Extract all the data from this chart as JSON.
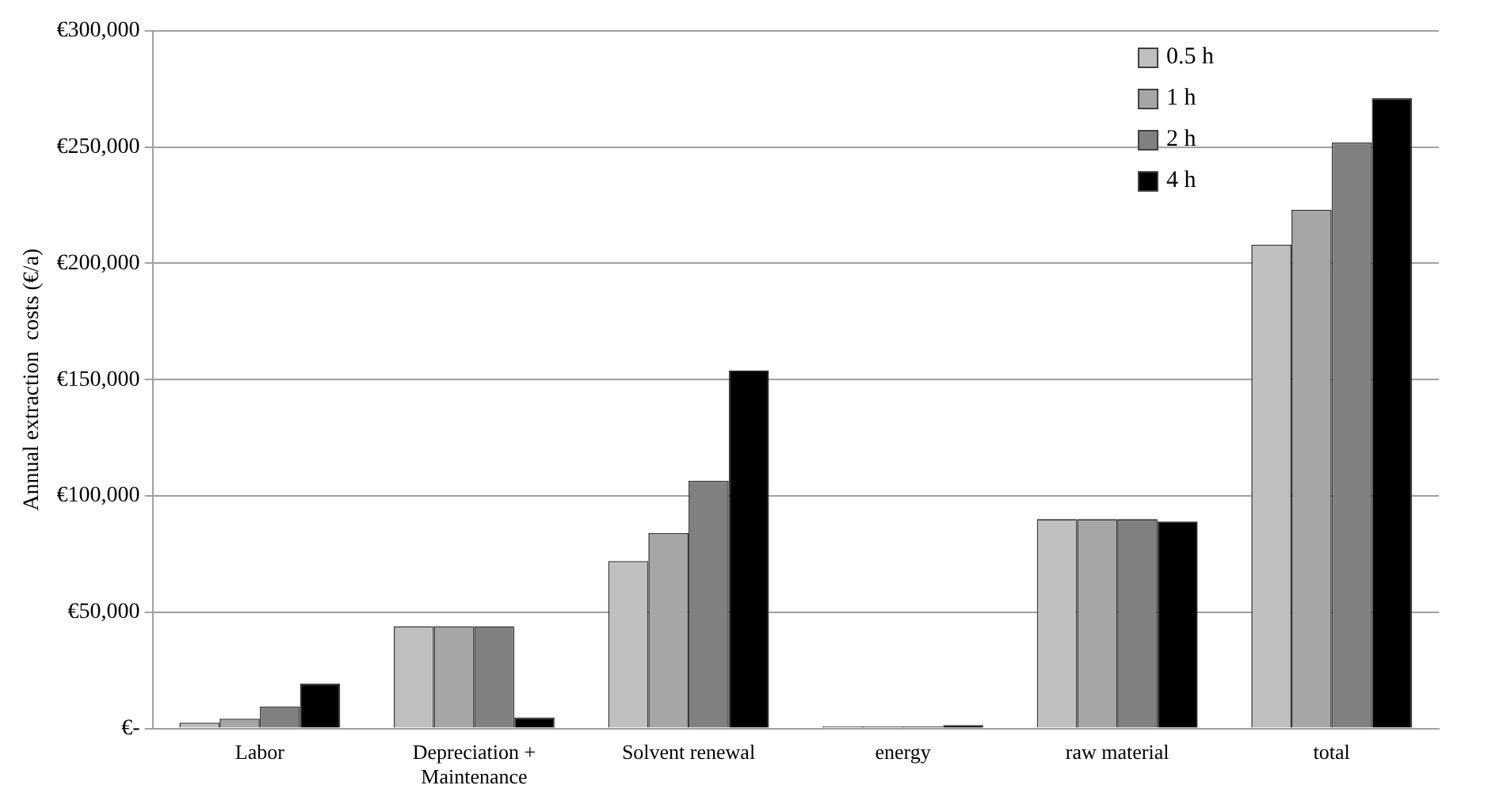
{
  "chart_data": {
    "type": "bar",
    "ylabel": "Annual extraction  costs (€/a)",
    "categories": [
      "Labor",
      "Depreciation + Maintenance",
      "Solvent renewal",
      "energy",
      "raw material",
      "total"
    ],
    "series": [
      {
        "name": "0.5 h",
        "color": "#c0c0c0",
        "values": [
          2500,
          44000,
          72000,
          1000,
          90000,
          208000
        ]
      },
      {
        "name": "1 h",
        "color": "#a6a6a6",
        "values": [
          4200,
          44000,
          84000,
          1000,
          90000,
          223000
        ]
      },
      {
        "name": "2 h",
        "color": "#808080",
        "values": [
          9400,
          44000,
          106500,
          1000,
          90000,
          252000
        ]
      },
      {
        "name": "4 h",
        "color": "#000000",
        "values": [
          19300,
          4700,
          154000,
          1500,
          89000,
          271000
        ]
      }
    ],
    "ylim": [
      0,
      300000
    ],
    "yticks": [
      {
        "value": 0,
        "label": "€-"
      },
      {
        "value": 50000,
        "label": "€50,000"
      },
      {
        "value": 100000,
        "label": "€100,000"
      },
      {
        "value": 150000,
        "label": "€150,000"
      },
      {
        "value": 200000,
        "label": "€200,000"
      },
      {
        "value": 250000,
        "label": "€250,000"
      },
      {
        "value": 300000,
        "label": "€300,000"
      }
    ],
    "grid": "y",
    "legend": "top right"
  }
}
